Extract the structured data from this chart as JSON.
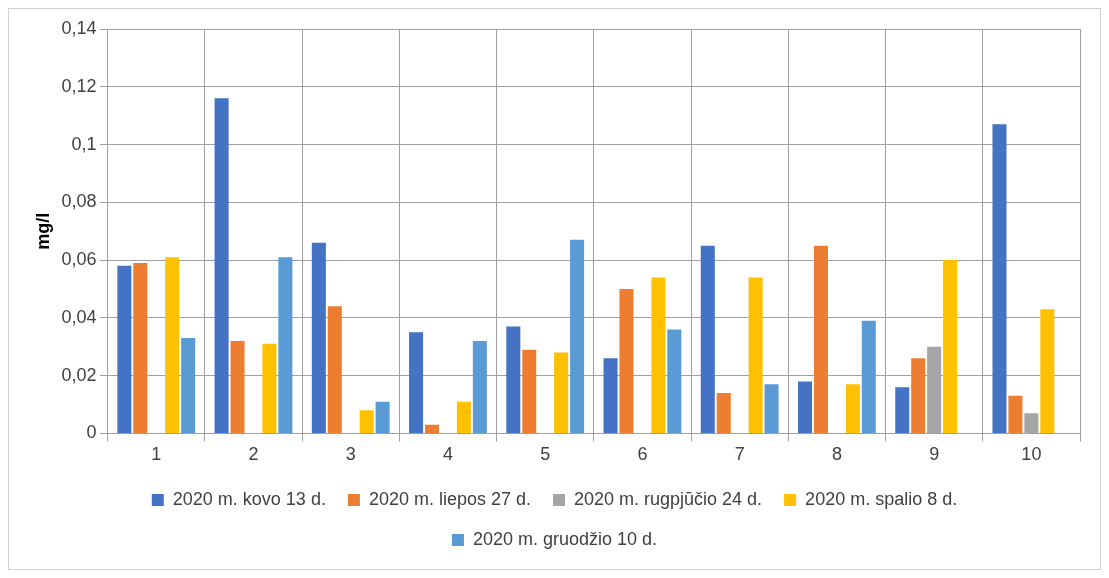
{
  "chart_data": {
    "type": "bar",
    "ylabel": "mg/l",
    "categories": [
      "1",
      "2",
      "3",
      "4",
      "5",
      "6",
      "7",
      "8",
      "9",
      "10"
    ],
    "series": [
      {
        "name": "2020 m. kovo 13 d.",
        "color": "#4472c4",
        "values": [
          0.058,
          0.116,
          0.066,
          0.035,
          0.037,
          0.026,
          0.065,
          0.018,
          0.016,
          0.107
        ]
      },
      {
        "name": "2020 m. liepos 27 d.",
        "color": "#ed7d31",
        "values": [
          0.059,
          0.032,
          0.044,
          0.003,
          0.029,
          0.05,
          0.014,
          0.065,
          0.026,
          0.013
        ]
      },
      {
        "name": "2020 m. rugpjūčio 24 d.",
        "color": "#a5a5a5",
        "values": [
          null,
          null,
          null,
          null,
          null,
          null,
          null,
          null,
          0.03,
          0.007
        ]
      },
      {
        "name": "2020 m. spalio 8 d.",
        "color": "#ffc000",
        "values": [
          0.061,
          0.031,
          0.008,
          0.011,
          0.028,
          0.054,
          0.054,
          0.017,
          0.06,
          0.043
        ]
      },
      {
        "name": "2020 m. gruodžio 10 d.",
        "color": "#5b9bd5",
        "values": [
          0.033,
          0.061,
          0.011,
          0.032,
          0.067,
          0.036,
          0.017,
          0.039,
          null,
          null
        ]
      }
    ],
    "ylim": [
      0,
      0.14
    ],
    "yticks": [
      {
        "value": 0,
        "label": "0"
      },
      {
        "value": 0.02,
        "label": "0,02"
      },
      {
        "value": 0.04,
        "label": "0,04"
      },
      {
        "value": 0.06,
        "label": "0,06"
      },
      {
        "value": 0.08,
        "label": "0,08"
      },
      {
        "value": 0.1,
        "label": "0,1"
      },
      {
        "value": 0.12,
        "label": "0,12"
      },
      {
        "value": 0.14,
        "label": "0,14"
      }
    ],
    "grid": true,
    "legend": "bottom"
  }
}
